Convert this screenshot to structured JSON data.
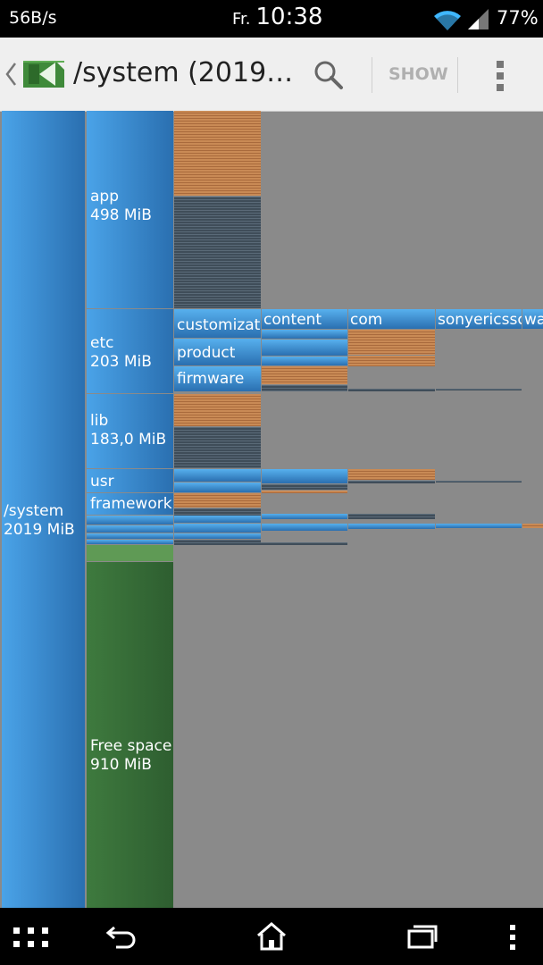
{
  "status_bar": {
    "net_speed": "56B/s",
    "day": "Fr.",
    "time": "10:38",
    "battery": "77%"
  },
  "action_bar": {
    "title": "/system (2019…",
    "show_label": "SHOW",
    "icons": [
      "back-chevron-icon",
      "app-logo-icon",
      "search-icon",
      "overflow-menu-icon"
    ]
  },
  "treemap": {
    "root": {
      "name": "/system",
      "size": "2019 MiB"
    },
    "children": [
      {
        "name": "app",
        "size": "498 MiB"
      },
      {
        "name": "etc",
        "size": "203 MiB"
      },
      {
        "name": "lib",
        "size": "183,0 MiB"
      },
      {
        "name": "usr"
      },
      {
        "name": "framework"
      },
      {
        "name": "Free space",
        "size": "910 MiB"
      }
    ],
    "etc_children": [
      "customizati",
      "product",
      "firmware"
    ],
    "customization_children": [
      "content",
      "com",
      "sonyericssc",
      "wa"
    ]
  },
  "navigation_bar": {
    "icons": [
      "apps-grid-icon",
      "back-icon",
      "home-icon",
      "recents-icon",
      "menu-dots-icon"
    ]
  },
  "colors": {
    "directory": "#3b8fd6",
    "file_orange": "#c98a55",
    "file_dark": "#4a5966",
    "free_space": "#3a6e3a",
    "background": "#8a8a8a"
  }
}
